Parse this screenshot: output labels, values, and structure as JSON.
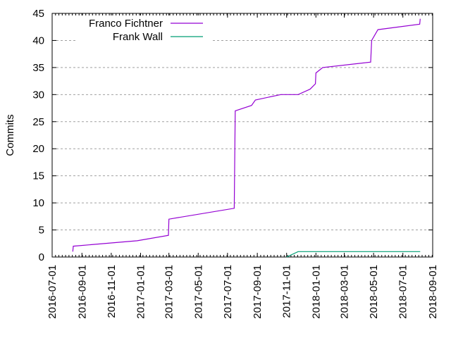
{
  "chart_data": {
    "type": "line",
    "title": "",
    "xlabel": "",
    "ylabel": "Commits",
    "ylim": [
      0,
      45
    ],
    "xlim": [
      "2016-07-01",
      "2018-09-01"
    ],
    "grid": true,
    "legend_position": "top-left",
    "y_ticks": [
      "0",
      "5",
      "10",
      "15",
      "20",
      "25",
      "30",
      "35",
      "40",
      "45"
    ],
    "x_ticks": [
      "2016-07-01",
      "2016-09-01",
      "2016-11-01",
      "2017-01-01",
      "2017-03-01",
      "2017-05-01",
      "2017-07-01",
      "2017-09-01",
      "2017-11-01",
      "2018-01-01",
      "2018-03-01",
      "2018-05-01",
      "2018-07-01",
      "2018-09-01"
    ],
    "series": [
      {
        "name": "Franco Fichtner",
        "color": "#9400d3",
        "points": [
          [
            "2016-08-13",
            1
          ],
          [
            "2016-08-14",
            2
          ],
          [
            "2016-12-25",
            3
          ],
          [
            "2017-02-28",
            4
          ],
          [
            "2017-03-01",
            7
          ],
          [
            "2017-07-15",
            9
          ],
          [
            "2017-07-17",
            27
          ],
          [
            "2017-08-20",
            28
          ],
          [
            "2017-08-28",
            29
          ],
          [
            "2017-10-20",
            30
          ],
          [
            "2017-11-25",
            30
          ],
          [
            "2017-12-20",
            31
          ],
          [
            "2017-12-31",
            32
          ],
          [
            "2018-01-01",
            34
          ],
          [
            "2018-01-15",
            35
          ],
          [
            "2018-04-25",
            36
          ],
          [
            "2018-04-27",
            40
          ],
          [
            "2018-05-10",
            42
          ],
          [
            "2018-08-05",
            43
          ],
          [
            "2018-08-06",
            44
          ]
        ]
      },
      {
        "name": "Frank Wall",
        "color": "#009e73",
        "points": [
          [
            "2017-11-01",
            0
          ],
          [
            "2017-11-25",
            1
          ],
          [
            "2018-08-06",
            1
          ]
        ]
      }
    ]
  },
  "legend": {
    "series_1": "Franco Fichtner",
    "series_2": "Frank Wall"
  },
  "axes": {
    "ylabel": "Commits"
  }
}
